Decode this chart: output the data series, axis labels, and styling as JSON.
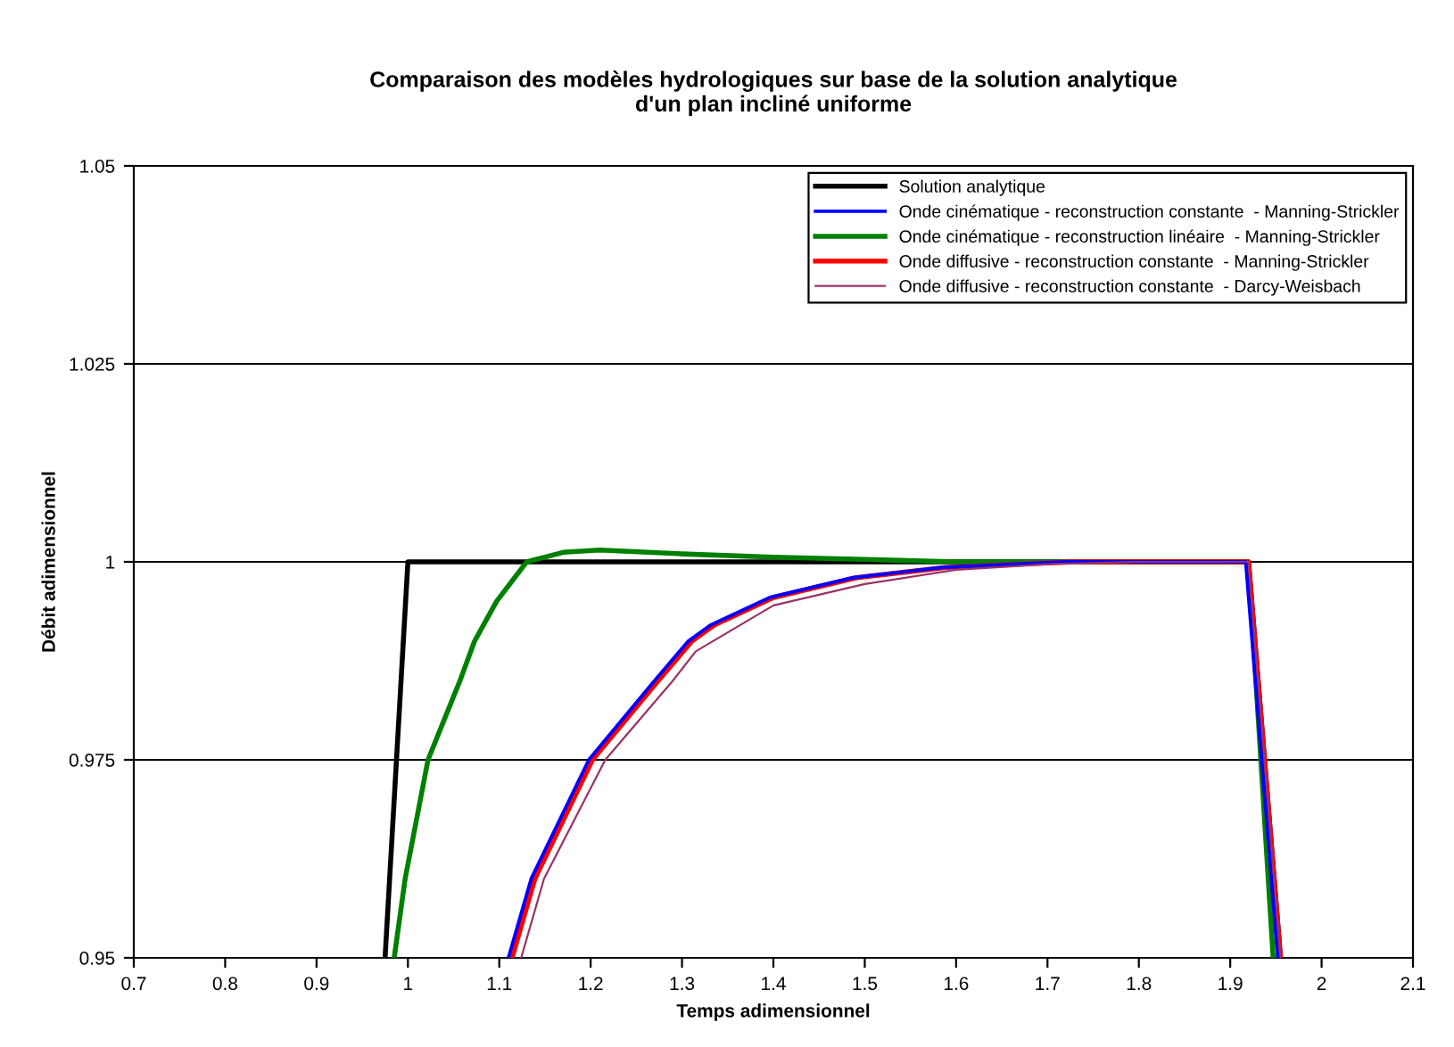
{
  "chart_data": {
    "type": "line",
    "title": "Comparaison des modèles hydrologiques sur base de la solution analytique\nd'un plan incliné uniforme",
    "xlabel": "Temps adimensionnel",
    "ylabel": "Débit adimensionnel",
    "xlim": [
      0.7,
      2.1
    ],
    "xticks": [
      0.7,
      0.8,
      0.9,
      1,
      1.1,
      1.2,
      1.3,
      1.4,
      1.5,
      1.6,
      1.7,
      1.8,
      1.9,
      2,
      2.1
    ],
    "ylim": [
      0.95,
      1.05
    ],
    "yticks": [
      0.95,
      0.975,
      1,
      1.025,
      1.05
    ],
    "grid": "y",
    "legend": "top right",
    "marker": "none",
    "line_style": "solid",
    "series": [
      {
        "name": "Solution analytique",
        "color": "#000000",
        "x": [
          0.975,
          1.0,
          1.92,
          1.955
        ],
        "values": [
          0.95,
          1.0,
          1.0,
          0.95
        ]
      },
      {
        "name": "Onde cinématique - reconstruction constante  - Manning-Strickler",
        "color": "#0000ff",
        "x": [
          1.11,
          1.135,
          1.198,
          1.27,
          1.307,
          1.331,
          1.396,
          1.487,
          1.585,
          1.72,
          1.917,
          1.952
        ],
        "values": [
          0.95,
          0.96,
          0.975,
          0.985,
          0.99,
          0.992,
          0.9955,
          0.998,
          0.9993,
          1.0,
          1.0,
          0.95
        ]
      },
      {
        "name": "Onde cinématique - reconstruction linéaire  - Manning-Strickler",
        "color": "#008000",
        "x": [
          0.985,
          0.997,
          1.022,
          1.057,
          1.073,
          1.097,
          1.13,
          1.17,
          1.21,
          1.3,
          1.4,
          1.5,
          1.6,
          1.92,
          1.947
        ],
        "values": [
          0.95,
          0.96,
          0.975,
          0.985,
          0.99,
          0.995,
          1.0,
          1.0012,
          1.0015,
          1.001,
          1.0006,
          1.0003,
          1.0,
          1.0,
          0.95
        ]
      },
      {
        "name": "Onde diffusive - reconstruction constante  - Manning-Strickler",
        "color": "#ff0000",
        "x": [
          1.114,
          1.139,
          1.202,
          1.274,
          1.311,
          1.335,
          1.4,
          1.491,
          1.589,
          1.725,
          1.92,
          1.955
        ],
        "values": [
          0.95,
          0.96,
          0.975,
          0.985,
          0.99,
          0.992,
          0.9955,
          0.998,
          0.9993,
          1.0,
          1.0,
          0.95
        ]
      },
      {
        "name": "Onde diffusive - reconstruction constante  - Darcy-Weisbach",
        "color": "#993366",
        "x": [
          1.124,
          1.149,
          1.216,
          1.29,
          1.315,
          1.4,
          1.5,
          1.6,
          1.7,
          1.8,
          1.92,
          1.955
        ],
        "values": [
          0.95,
          0.96,
          0.975,
          0.985,
          0.9887,
          0.9945,
          0.9972,
          0.999,
          0.9997,
          1.0,
          1.0,
          0.95
        ]
      }
    ]
  }
}
